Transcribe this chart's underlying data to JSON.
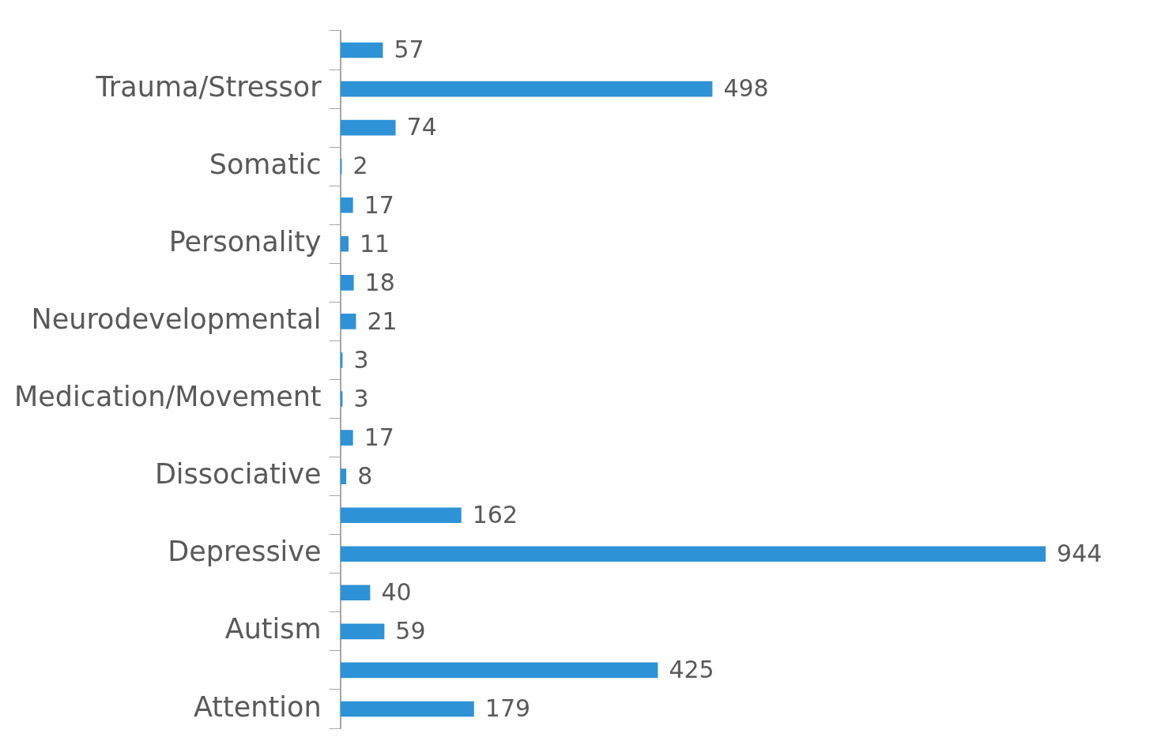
{
  "chart_data": {
    "type": "bar",
    "orientation": "horizontal",
    "categories": [
      null,
      "Trauma/Stressor",
      null,
      "Somatic",
      null,
      "Personality",
      null,
      "Neurodevelopmental",
      null,
      "Medication/Movement",
      null,
      "Dissociative",
      null,
      "Depressive",
      null,
      "Autism",
      null,
      "Attention"
    ],
    "values": [
      57,
      498,
      74,
      2,
      17,
      11,
      18,
      21,
      3,
      3,
      17,
      8,
      162,
      944,
      40,
      59,
      425,
      179
    ],
    "color": "#2e92d6",
    "data_labels": true,
    "tick_labels": "y"
  }
}
